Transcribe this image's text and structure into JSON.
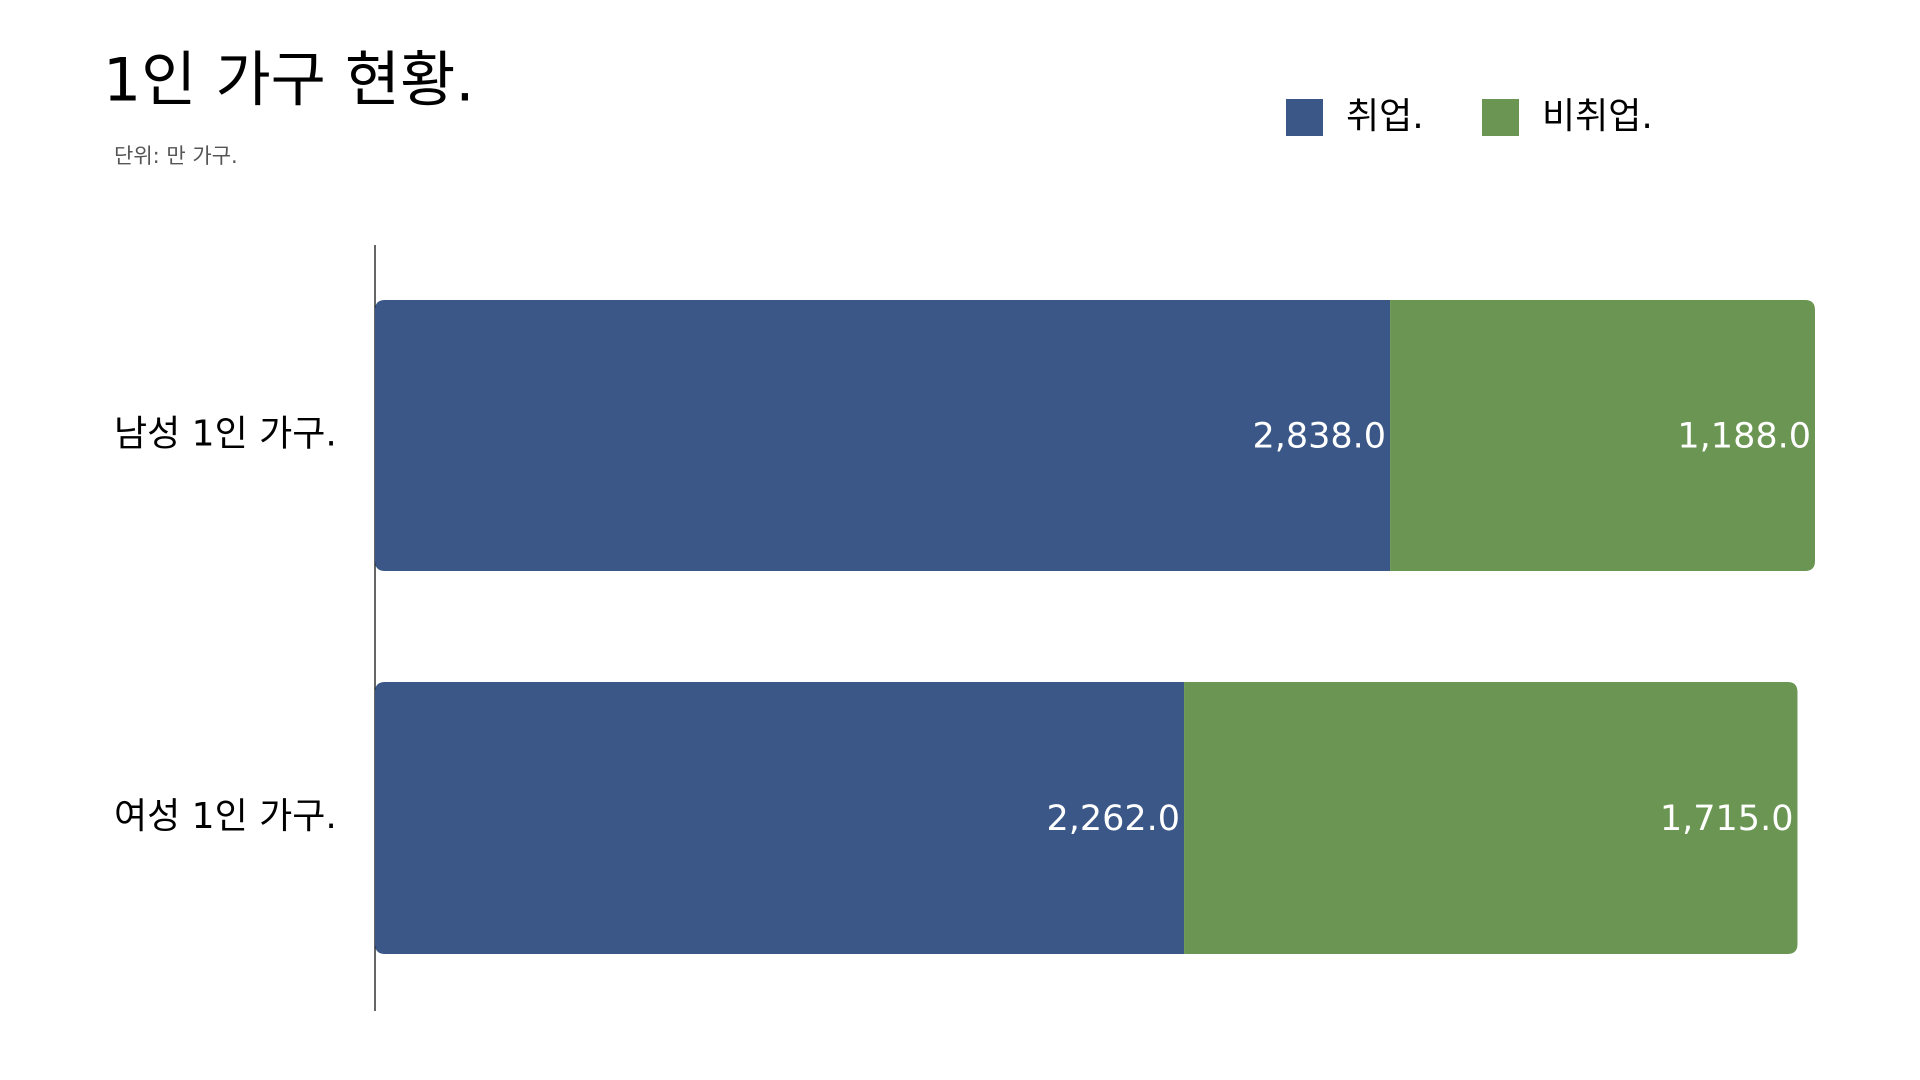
{
  "chart_data": {
    "type": "stacked-bar-horizontal",
    "title": "1인 가구 현황.",
    "subtitle": "단위: 만 가구.",
    "categories": [
      "남성 1인 가구.",
      "여성 1인 가구."
    ],
    "series": [
      {
        "name": "취업.",
        "color": "#3a5788",
        "values": [
          2838,
          2262
        ],
        "value_labels": [
          "2,838.0",
          "2,262.0"
        ]
      },
      {
        "name": "비취업.",
        "color": "#6a9552",
        "values": [
          1188,
          1715
        ],
        "value_labels": [
          "1,188.0",
          "1,715.0"
        ]
      }
    ],
    "xlim": [
      0,
      4026
    ],
    "legend": "top-right"
  }
}
